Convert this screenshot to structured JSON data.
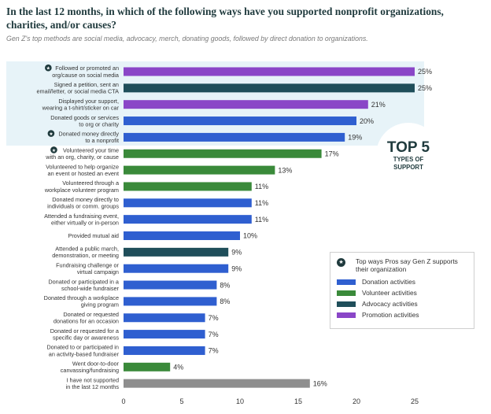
{
  "title": "In the last 12 months, in which of the following ways have you supported nonprofit organizations, charities, and/or causes?",
  "subtitle": "Gen Z's top methods are social media, advocacy, merch, donating goods, followed by direct donation to organizations.",
  "top5": {
    "big": "TOP 5",
    "small": "TYPES OF SUPPORT"
  },
  "legend": {
    "header": "Top ways Pros say Gen Z supports their organization",
    "header_icon": "star-badge-icon",
    "items": [
      {
        "label": "Donation activities",
        "color": "#2f5fd0"
      },
      {
        "label": "Volunteer activities",
        "color": "#3a8a3a"
      },
      {
        "label": "Advocacy activities",
        "color": "#1f4e5a"
      },
      {
        "label": "Promotion activities",
        "color": "#8a46c7"
      }
    ]
  },
  "chart_data": {
    "type": "bar",
    "orientation": "horizontal",
    "xlim": [
      0,
      25
    ],
    "xticks": [
      0,
      5,
      10,
      15,
      20,
      25
    ],
    "xlabel": "",
    "ylabel": "",
    "grid": false,
    "colors": {
      "Donation": "#2f5fd0",
      "Volunteer": "#3a8a3a",
      "Advocacy": "#1f4e5a",
      "Promotion": "#8a46c7",
      "None": "#8e8e8e"
    },
    "bars": [
      {
        "label": [
          "Followed or promoted an",
          "org/cause on social media"
        ],
        "value": 25,
        "value_label": "25%",
        "group": "Promotion",
        "star": true
      },
      {
        "label": [
          "Signed a petition, sent an",
          "email/letter, or social media CTA"
        ],
        "value": 25,
        "value_label": "25%",
        "group": "Advocacy",
        "star": false
      },
      {
        "label": [
          "Displayed your support,",
          "wearing a t-shirt/sticker on car"
        ],
        "value": 21,
        "value_label": "21%",
        "group": "Promotion",
        "star": false
      },
      {
        "label": [
          "Donated goods or services",
          "to org or charity"
        ],
        "value": 20,
        "value_label": "20%",
        "group": "Donation",
        "star": false
      },
      {
        "label": [
          "Donated money directly",
          "to a nonprofit"
        ],
        "value": 19,
        "value_label": "19%",
        "group": "Donation",
        "star": true
      },
      {
        "label": [
          "Volunteered your time",
          "with an org, charity, or cause"
        ],
        "value": 17,
        "value_label": "17%",
        "group": "Volunteer",
        "star": true
      },
      {
        "label": [
          "Volunteered to help organize",
          "an event or hosted an event"
        ],
        "value": 13,
        "value_label": "13%",
        "group": "Volunteer",
        "star": false
      },
      {
        "label": [
          "Volunteered through a",
          "workplace volunteer program"
        ],
        "value": 11,
        "value_label": "11%",
        "group": "Volunteer",
        "star": false
      },
      {
        "label": [
          "Donated money directly to",
          "individuals or comm. groups"
        ],
        "value": 11,
        "value_label": "11%",
        "group": "Donation",
        "star": false
      },
      {
        "label": [
          "Attended a fundraising event,",
          "either virtually or in-person"
        ],
        "value": 11,
        "value_label": "11%",
        "group": "Donation",
        "star": false
      },
      {
        "label": [
          "Provided mutual aid"
        ],
        "value": 10,
        "value_label": "10%",
        "group": "Donation",
        "star": false
      },
      {
        "label": [
          "Attended a public march,",
          "demonstration, or meeting"
        ],
        "value": 9,
        "value_label": "9%",
        "group": "Advocacy",
        "star": false
      },
      {
        "label": [
          "Fundraising challenge or",
          "virtual campaign"
        ],
        "value": 9,
        "value_label": "9%",
        "group": "Donation",
        "star": false
      },
      {
        "label": [
          "Donated or participated in a",
          "school-wide fundraiser"
        ],
        "value": 8,
        "value_label": "8%",
        "group": "Donation",
        "star": false
      },
      {
        "label": [
          "Donated through a workplace",
          "giving program"
        ],
        "value": 8,
        "value_label": "8%",
        "group": "Donation",
        "star": false
      },
      {
        "label": [
          "Donated or requested",
          "donations for an occasion"
        ],
        "value": 7,
        "value_label": "7%",
        "group": "Donation",
        "star": false
      },
      {
        "label": [
          "Donated or requested for a",
          "specific day or awareness"
        ],
        "value": 7,
        "value_label": "7%",
        "group": "Donation",
        "star": false
      },
      {
        "label": [
          "Donated to or participated in",
          "an activity-based fundraiser"
        ],
        "value": 7,
        "value_label": "7%",
        "group": "Donation",
        "star": false
      },
      {
        "label": [
          "Went door-to-door",
          "canvassing/fundraising"
        ],
        "value": 4,
        "value_label": "4%",
        "group": "Volunteer",
        "star": false
      },
      {
        "label": [
          "I have not supported",
          "in the last 12 months"
        ],
        "value": 16,
        "value_label": "16%",
        "group": "None",
        "star": false
      }
    ]
  }
}
